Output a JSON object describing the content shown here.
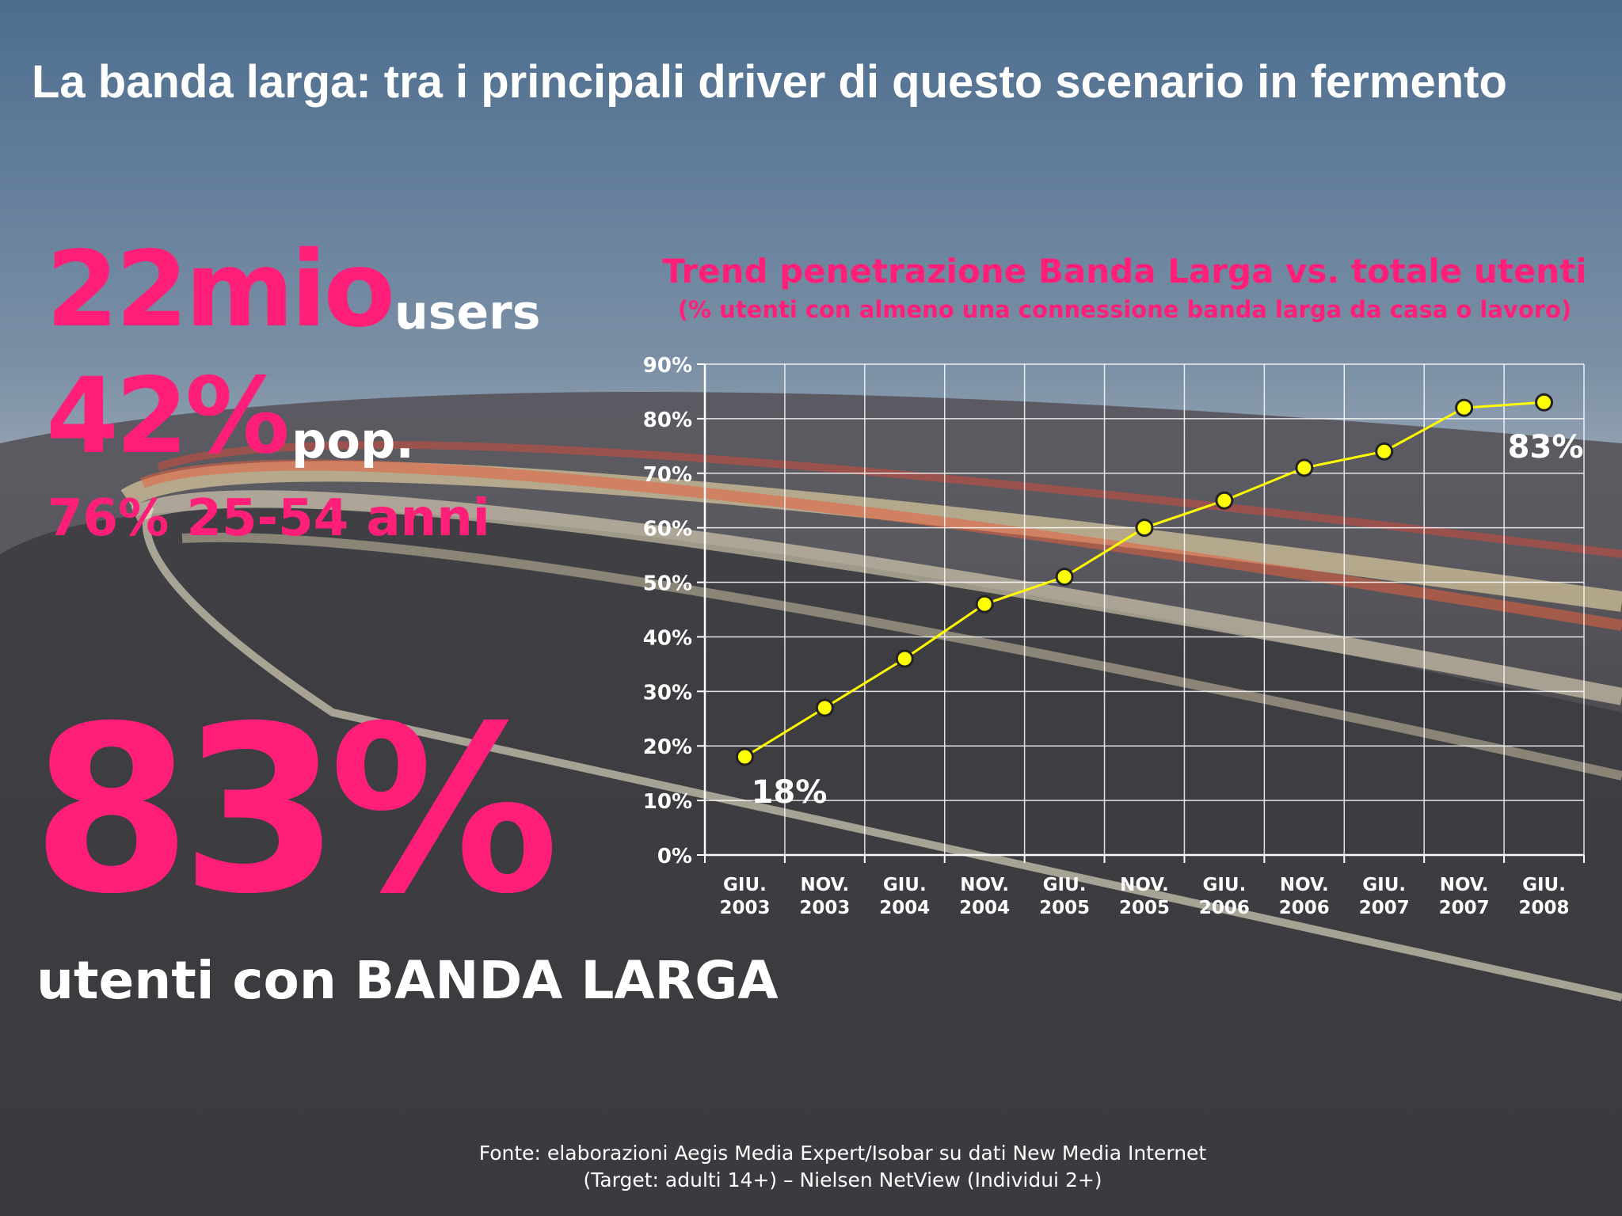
{
  "title": "La banda larga: tra i principali driver di questo scenario in fermento",
  "stats": {
    "users_value": "22mio",
    "users_unit": "users",
    "pop_value": "42%",
    "pop_unit": "pop.",
    "age_text": "76% 25-54 anni",
    "big_value": "83%",
    "big_caption": "utenti con BANDA LARGA"
  },
  "source": {
    "line1": "Fonte: elaborazioni Aegis Media Expert/Isobar su dati New Media Internet",
    "line2": "(Target: adulti 14+) – Nielsen NetView (Individui 2+)"
  },
  "colors": {
    "accent": "#ff1f78",
    "line": "#ffff00",
    "text": "#ffffff"
  },
  "chart_data": {
    "type": "line",
    "title": "Trend penetrazione Banda Larga vs. totale utenti",
    "subtitle": "(% utenti con almeno una connessione banda larga da casa o lavoro)",
    "categories": [
      [
        "GIU.",
        "2003"
      ],
      [
        "NOV.",
        "2003"
      ],
      [
        "GIU.",
        "2004"
      ],
      [
        "NOV.",
        "2004"
      ],
      [
        "GIU.",
        "2005"
      ],
      [
        "NOV.",
        "2005"
      ],
      [
        "GIU.",
        "2006"
      ],
      [
        "NOV.",
        "2006"
      ],
      [
        "GIU.",
        "2007"
      ],
      [
        "NOV.",
        "2007"
      ],
      [
        "GIU.",
        "2008"
      ]
    ],
    "values": [
      18,
      27,
      36,
      46,
      51,
      60,
      65,
      71,
      74,
      82,
      83
    ],
    "yticks": [
      "0%",
      "10%",
      "20%",
      "30%",
      "40%",
      "50%",
      "60%",
      "70%",
      "80%",
      "90%"
    ],
    "ylim": [
      0,
      90
    ],
    "grid": true,
    "data_labels": [
      {
        "index": 0,
        "text": "18%"
      },
      {
        "index": 10,
        "text": "83%"
      }
    ]
  }
}
